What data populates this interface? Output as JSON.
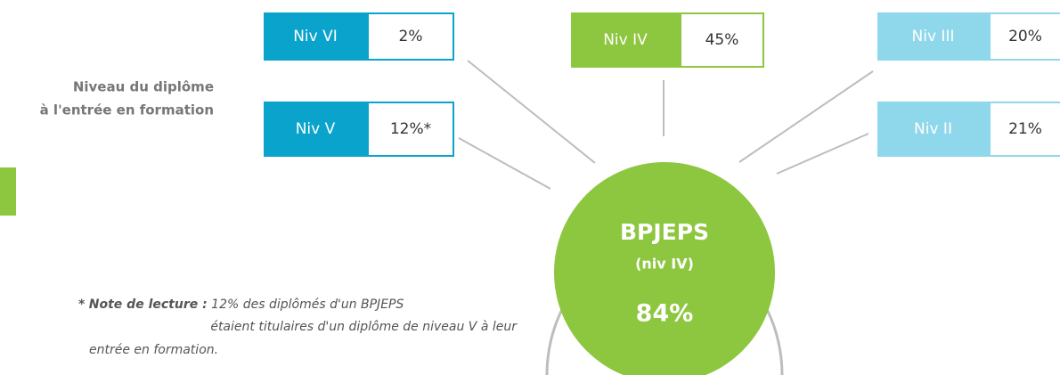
{
  "caption": [
    "Niveau du diplôme",
    "à l'entrée en formation"
  ],
  "levels": [
    {
      "label": "Niv VI",
      "value": "2%"
    },
    {
      "label": "Niv V",
      "value": "12%*"
    },
    {
      "label": "Niv IV",
      "value": "45%"
    },
    {
      "label": "Niv III",
      "value": "20%"
    },
    {
      "label": "Niv II",
      "value": "21%"
    }
  ],
  "center": {
    "name": "BPJEPS",
    "level": "(niv IV)",
    "value": "84%"
  },
  "note": {
    "mark": "*",
    "lead": "Note de lecture :",
    "lines": [
      "12% des diplômés d'un BPJEPS",
      "étaient titulaires d'un diplôme de niveau V à leur",
      "entrée en formation."
    ]
  }
}
